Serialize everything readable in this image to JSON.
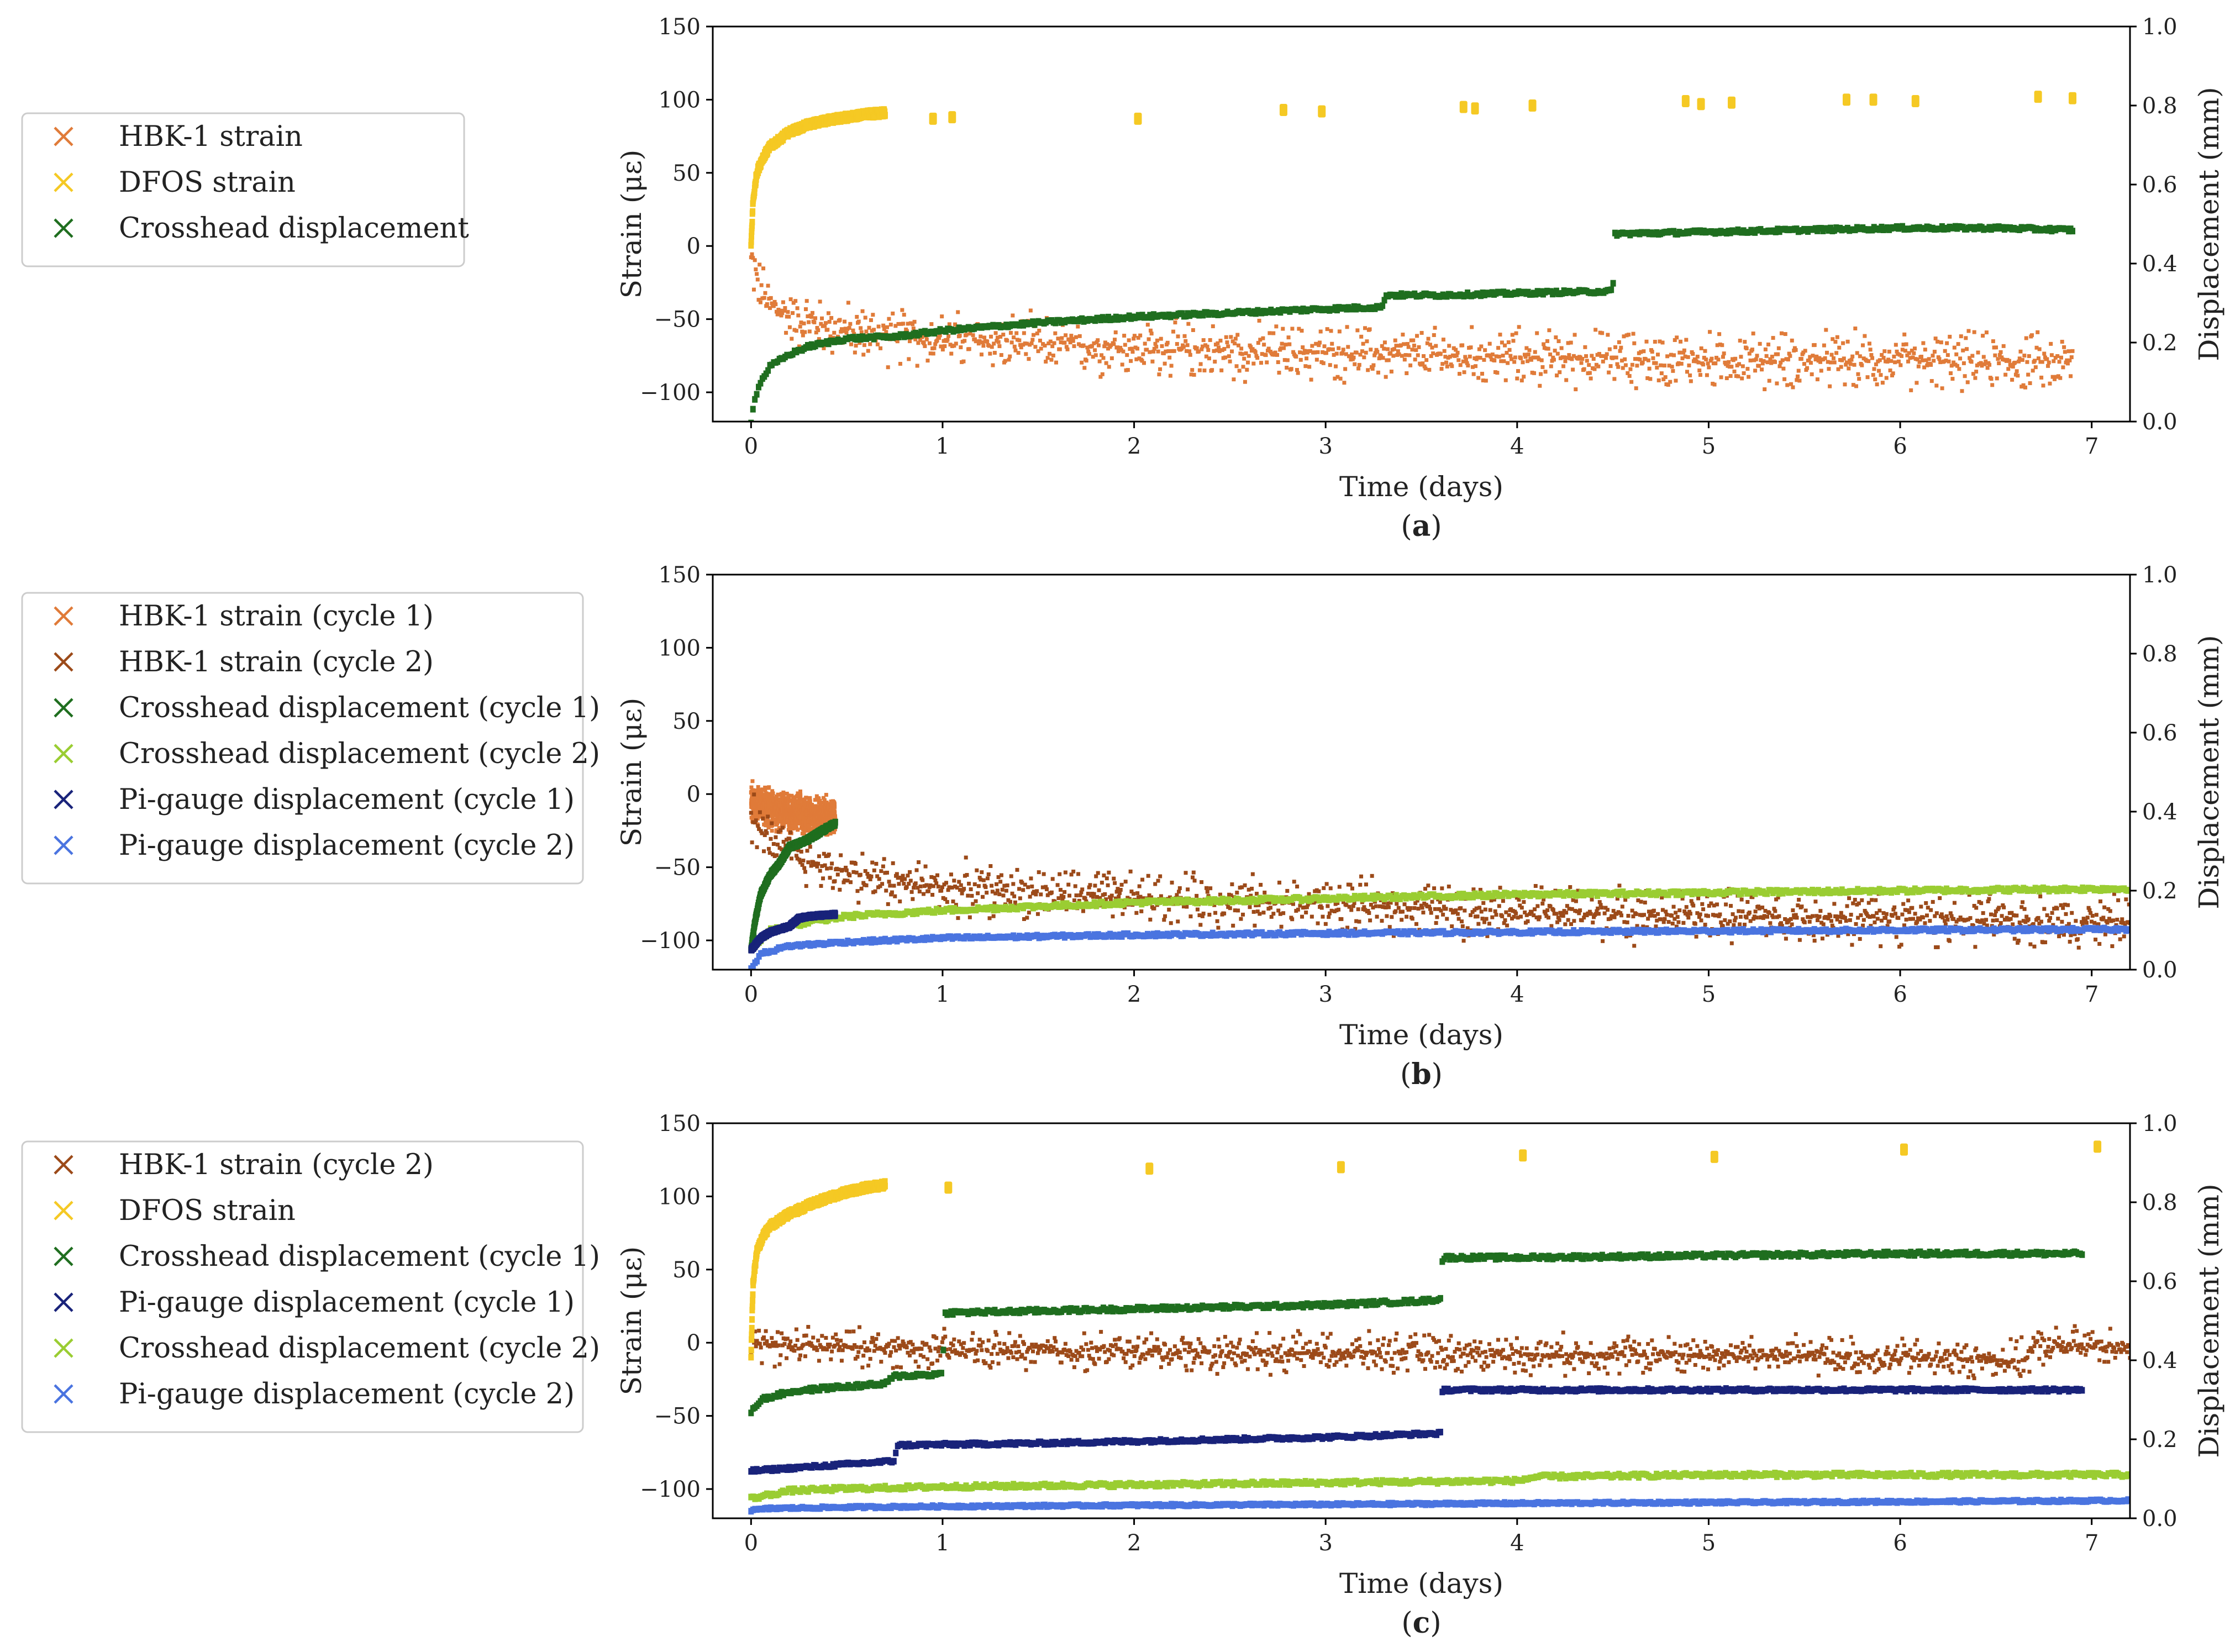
{
  "colors": {
    "hbk_cycle1": "#e07b39",
    "hbk_cycle2": "#9c4a19",
    "dfos": "#f5c924",
    "crosshead_cycle1": "#1f6e1f",
    "crosshead_cycle2": "#9acd32",
    "pigauge_cycle1": "#19237a",
    "pigauge_cycle2": "#4a74e0"
  },
  "chart_data": [
    {
      "type": "scatter",
      "caption": "a",
      "xlabel": "Time (days)",
      "ylabel": "Strain (με)",
      "y2label": "Displacement (mm)",
      "xlim": [
        -0.2,
        7.2
      ],
      "ylim": [
        -120,
        150
      ],
      "y2lim": [
        0.0,
        1.0
      ],
      "xticks": [
        "0",
        "1",
        "2",
        "3",
        "4",
        "5",
        "6",
        "7"
      ],
      "yticks": [
        "−100",
        "−50",
        "0",
        "50",
        "100",
        "150"
      ],
      "y2ticks": [
        "0.0",
        "0.2",
        "0.4",
        "0.6",
        "0.8",
        "1.0"
      ],
      "legend": [
        "HBK-1 strain",
        "DFOS strain",
        "Crosshead displacement"
      ],
      "series": [
        {
          "name": "HBK-1 strain",
          "color": "hbk_cycle1",
          "axis": "left",
          "band": 24,
          "x": [
            0,
            0.05,
            0.1,
            0.2,
            0.3,
            0.5,
            0.7,
            1.0,
            1.5,
            2.0,
            2.5,
            3.0,
            3.5,
            4.0,
            4.5,
            5.0,
            5.5,
            6.0,
            6.5,
            6.9
          ],
          "y": [
            -10,
            -30,
            -40,
            -48,
            -52,
            -58,
            -61,
            -64,
            -67,
            -70,
            -72,
            -73,
            -75,
            -76,
            -77,
            -78,
            -78,
            -79,
            -79,
            -80
          ]
        },
        {
          "name": "DFOS strain",
          "color": "dfos",
          "axis": "left",
          "band": 4,
          "x": [
            0,
            0.01,
            0.03,
            0.06,
            0.1,
            0.15,
            0.2,
            0.3,
            0.4,
            0.5,
            0.6,
            0.7
          ],
          "y": [
            0,
            30,
            50,
            60,
            68,
            73,
            78,
            83,
            86,
            88,
            90,
            91
          ],
          "clusters": [
            [
              0.95,
              87
            ],
            [
              1.05,
              88
            ],
            [
              2.02,
              87
            ],
            [
              2.78,
              93
            ],
            [
              2.98,
              92
            ],
            [
              3.72,
              95
            ],
            [
              3.78,
              94
            ],
            [
              4.08,
              96
            ],
            [
              4.88,
              99
            ],
            [
              4.96,
              97
            ],
            [
              5.12,
              98
            ],
            [
              5.72,
              100
            ],
            [
              5.86,
              100
            ],
            [
              6.08,
              99
            ],
            [
              6.72,
              102
            ],
            [
              6.9,
              101
            ]
          ]
        },
        {
          "name": "Crosshead displacement",
          "color": "crosshead_cycle1",
          "axis": "right",
          "band": 0.007,
          "x": [
            0,
            0.02,
            0.05,
            0.1,
            0.2,
            0.3,
            0.5,
            0.75,
            1.0,
            1.5,
            2.0,
            2.5,
            3.0,
            3.3,
            3.31,
            3.6,
            4.0,
            4.5,
            4.51,
            5.0,
            5.5,
            6.0,
            6.5,
            6.9
          ],
          "y": [
            0.0,
            0.06,
            0.1,
            0.14,
            0.17,
            0.19,
            0.21,
            0.215,
            0.23,
            0.25,
            0.265,
            0.275,
            0.285,
            0.29,
            0.32,
            0.32,
            0.325,
            0.33,
            0.475,
            0.48,
            0.485,
            0.49,
            0.49,
            0.485
          ]
        }
      ]
    },
    {
      "type": "scatter",
      "caption": "b",
      "xlabel": "Time (days)",
      "ylabel": "Strain (με)",
      "y2label": "Displacement (mm)",
      "xlim": [
        -0.2,
        7.2
      ],
      "ylim": [
        -120,
        150
      ],
      "y2lim": [
        0.0,
        1.0
      ],
      "xticks": [
        "0",
        "1",
        "2",
        "3",
        "4",
        "5",
        "6",
        "7"
      ],
      "yticks": [
        "−100",
        "−50",
        "0",
        "50",
        "100",
        "150"
      ],
      "y2ticks": [
        "0.0",
        "0.2",
        "0.4",
        "0.6",
        "0.8",
        "1.0"
      ],
      "legend": [
        "HBK-1 strain (cycle 1)",
        "HBK-1 strain (cycle 2)",
        "Crosshead displacement (cycle 1)",
        "Crosshead displacement (cycle 2)",
        "Pi-gauge displacement (cycle 1)",
        "Pi-gauge displacement (cycle 2)"
      ],
      "series": [
        {
          "name": "HBK-1 strain (cycle 1)",
          "color": "hbk_cycle1",
          "axis": "left",
          "band": 16,
          "x": [
            0,
            0.05,
            0.1,
            0.2,
            0.3,
            0.44
          ],
          "y": [
            -5,
            -8,
            -10,
            -12,
            -14,
            -15
          ]
        },
        {
          "name": "HBK-1 strain (cycle 2)",
          "color": "hbk_cycle2",
          "axis": "left",
          "band": 22,
          "x": [
            0,
            0.05,
            0.1,
            0.2,
            0.3,
            0.5,
            0.75,
            1.0,
            1.5,
            2.0,
            2.5,
            3.0,
            3.5,
            4.0,
            4.5,
            5.0,
            5.5,
            6.0,
            6.5,
            7.2
          ],
          "y": [
            -15,
            -25,
            -32,
            -40,
            -46,
            -54,
            -60,
            -64,
            -68,
            -71,
            -73,
            -76,
            -78,
            -80,
            -82,
            -83,
            -84,
            -85,
            -86,
            -87
          ]
        },
        {
          "name": "Crosshead displacement (cycle 1)",
          "color": "crosshead_cycle1",
          "axis": "right",
          "band": 0.008,
          "x": [
            0,
            0.02,
            0.05,
            0.1,
            0.15,
            0.2,
            0.3,
            0.4,
            0.44
          ],
          "y": [
            0.05,
            0.12,
            0.19,
            0.24,
            0.27,
            0.31,
            0.33,
            0.36,
            0.37
          ]
        },
        {
          "name": "Crosshead displacement (cycle 2)",
          "color": "crosshead_cycle2",
          "axis": "right",
          "band": 0.008,
          "x": [
            0,
            0.1,
            0.3,
            0.5,
            1.0,
            1.5,
            2.0,
            3.0,
            4.0,
            5.0,
            6.0,
            7.2
          ],
          "y": [
            0.05,
            0.1,
            0.12,
            0.135,
            0.15,
            0.16,
            0.17,
            0.18,
            0.19,
            0.195,
            0.2,
            0.205
          ]
        },
        {
          "name": "Pi-gauge displacement (cycle 1)",
          "color": "pigauge_cycle1",
          "axis": "right",
          "band": 0.006,
          "x": [
            0,
            0.05,
            0.1,
            0.2,
            0.25,
            0.3,
            0.44
          ],
          "y": [
            0.05,
            0.08,
            0.095,
            0.11,
            0.13,
            0.135,
            0.14
          ]
        },
        {
          "name": "Pi-gauge displacement (cycle 2)",
          "color": "pigauge_cycle2",
          "axis": "right",
          "band": 0.006,
          "x": [
            0,
            0.05,
            0.2,
            0.5,
            1.0,
            2.0,
            3.0,
            4.0,
            5.0,
            6.0,
            7.2
          ],
          "y": [
            0.0,
            0.04,
            0.06,
            0.07,
            0.08,
            0.088,
            0.092,
            0.095,
            0.098,
            0.1,
            0.102
          ]
        }
      ]
    },
    {
      "type": "scatter",
      "caption": "c",
      "xlabel": "Time (days)",
      "ylabel": "Strain (με)",
      "y2label": "Displacement (mm)",
      "xlim": [
        -0.2,
        7.2
      ],
      "ylim": [
        -120,
        150
      ],
      "y2lim": [
        0.0,
        1.0
      ],
      "xticks": [
        "0",
        "1",
        "2",
        "3",
        "4",
        "5",
        "6",
        "7"
      ],
      "yticks": [
        "−100",
        "−50",
        "0",
        "50",
        "100",
        "150"
      ],
      "y2ticks": [
        "0.0",
        "0.2",
        "0.4",
        "0.6",
        "0.8",
        "1.0"
      ],
      "legend": [
        "HBK-1 strain (cycle 2)",
        "DFOS strain",
        "Crosshead displacement (cycle 1)",
        "Pi-gauge displacement (cycle 1)",
        "Crosshead displacement (cycle 2)",
        "Pi-gauge displacement (cycle 2)"
      ],
      "series": [
        {
          "name": "HBK-1 strain (cycle 2)",
          "color": "hbk_cycle2",
          "axis": "left",
          "band": 16,
          "x": [
            0,
            0.1,
            0.5,
            1.0,
            1.5,
            2.0,
            2.5,
            3.0,
            3.5,
            4.0,
            4.5,
            5.0,
            5.5,
            6.0,
            6.5,
            6.65,
            6.7,
            7.0,
            7.2
          ],
          "y": [
            0,
            -2,
            -3,
            -5,
            -6,
            -6,
            -7,
            -7,
            -7,
            -8,
            -8,
            -8,
            -9,
            -10,
            -12,
            -12,
            -3,
            -2,
            -2
          ]
        },
        {
          "name": "DFOS strain",
          "color": "dfos",
          "axis": "left",
          "band": 4,
          "x": [
            0,
            0.01,
            0.03,
            0.06,
            0.1,
            0.2,
            0.3,
            0.4,
            0.5,
            0.6,
            0.7
          ],
          "y": [
            -10,
            40,
            62,
            72,
            80,
            88,
            94,
            99,
            103,
            106,
            108
          ],
          "clusters": [
            [
              1.03,
              106
            ],
            [
              2.08,
              119
            ],
            [
              3.08,
              120
            ],
            [
              4.03,
              128
            ],
            [
              5.03,
              127
            ],
            [
              6.02,
              132
            ],
            [
              7.03,
              134
            ]
          ]
        },
        {
          "name": "Crosshead displacement (cycle 1)",
          "color": "crosshead_cycle1",
          "axis": "right",
          "band": 0.008,
          "x": [
            0,
            0.05,
            0.2,
            0.4,
            0.7,
            0.75,
            1.0,
            1.01,
            1.5,
            2.0,
            2.5,
            3.0,
            3.5,
            3.6,
            3.61,
            4.0,
            5.0,
            6.0,
            6.95
          ],
          "y": [
            0.27,
            0.3,
            0.32,
            0.33,
            0.34,
            0.36,
            0.365,
            0.52,
            0.525,
            0.53,
            0.535,
            0.54,
            0.55,
            0.555,
            0.66,
            0.66,
            0.665,
            0.67,
            0.67
          ]
        },
        {
          "name": "Pi-gauge displacement (cycle 1)",
          "color": "pigauge_cycle1",
          "axis": "right",
          "band": 0.006,
          "x": [
            0,
            0.3,
            0.75,
            0.76,
            1.5,
            2.0,
            3.0,
            3.6,
            3.61,
            4.0,
            5.0,
            6.0,
            6.95
          ],
          "y": [
            0.12,
            0.13,
            0.145,
            0.185,
            0.19,
            0.195,
            0.205,
            0.215,
            0.325,
            0.325,
            0.325,
            0.325,
            0.325
          ]
        },
        {
          "name": "Crosshead displacement (cycle 2)",
          "color": "crosshead_cycle2",
          "axis": "right",
          "band": 0.008,
          "x": [
            0,
            0.2,
            0.5,
            1.0,
            2.0,
            3.0,
            4.0,
            4.1,
            5.0,
            6.0,
            7.2
          ],
          "y": [
            0.05,
            0.07,
            0.075,
            0.08,
            0.085,
            0.09,
            0.095,
            0.105,
            0.11,
            0.11,
            0.11
          ]
        },
        {
          "name": "Pi-gauge displacement (cycle 2)",
          "color": "pigauge_cycle2",
          "axis": "right",
          "band": 0.004,
          "x": [
            0,
            0.1,
            0.5,
            1.0,
            2.0,
            3.0,
            4.0,
            5.0,
            6.0,
            7.2
          ],
          "y": [
            0.02,
            0.025,
            0.028,
            0.03,
            0.033,
            0.035,
            0.038,
            0.04,
            0.042,
            0.045
          ]
        }
      ]
    }
  ]
}
